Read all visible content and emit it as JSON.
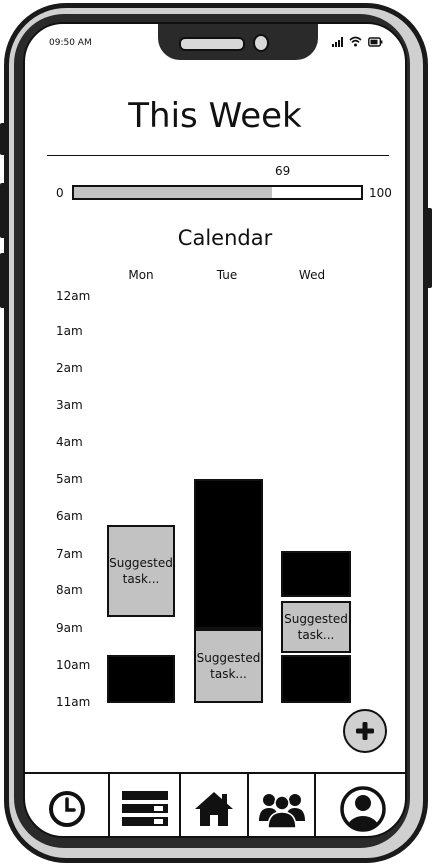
{
  "status_bar": {
    "time": "09:50 AM"
  },
  "header": {
    "title": "This Week"
  },
  "progress": {
    "value": "69",
    "min": "0",
    "max": "100",
    "fraction": 0.69
  },
  "calendar": {
    "title": "Calendar",
    "days": [
      "Mon",
      "Tue",
      "Wed"
    ],
    "hours": [
      "12am",
      "1am",
      "2am",
      "3am",
      "4am",
      "5am",
      "6am",
      "7am",
      "8am",
      "9am",
      "10am",
      "11am"
    ],
    "blocks": [
      {
        "day": "Mon",
        "kind": "suggested",
        "label": "Suggested task..."
      },
      {
        "day": "Mon",
        "kind": "busy",
        "label": ""
      },
      {
        "day": "Tue",
        "kind": "busy",
        "label": ""
      },
      {
        "day": "Tue",
        "kind": "suggested",
        "label": "Suggested task..."
      },
      {
        "day": "Wed",
        "kind": "busy",
        "label": ""
      },
      {
        "day": "Wed",
        "kind": "suggested",
        "label": "Suggested task..."
      },
      {
        "day": "Wed",
        "kind": "busy",
        "label": ""
      }
    ],
    "suggested_color": "#c2c2c2",
    "busy_color": "#000000"
  },
  "fab": {
    "icon": "plus-icon"
  },
  "tabs": [
    {
      "name": "history",
      "icon": "clock-icon"
    },
    {
      "name": "list",
      "icon": "list-icon"
    },
    {
      "name": "home",
      "icon": "home-icon",
      "active": true
    },
    {
      "name": "groups",
      "icon": "people-icon"
    },
    {
      "name": "profile",
      "icon": "user-icon"
    }
  ]
}
